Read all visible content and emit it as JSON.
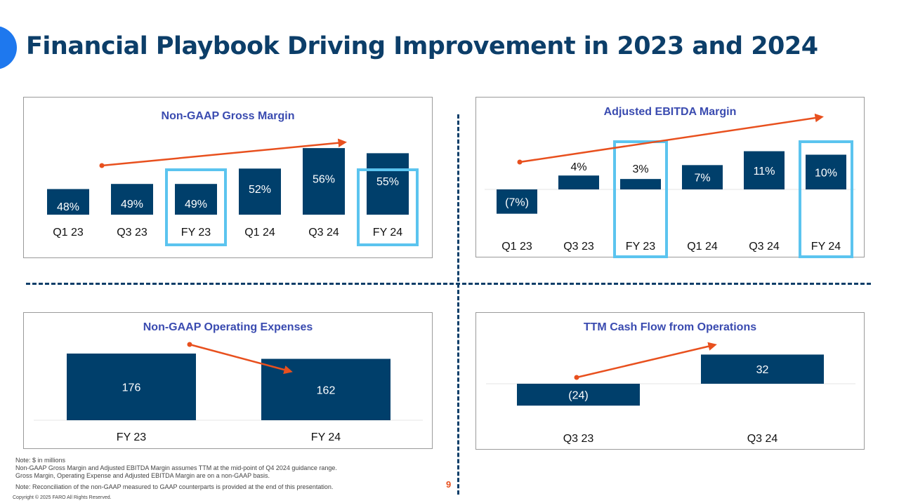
{
  "slide": {
    "title": "Financial Playbook Driving Improvement in 2023 and 2024",
    "page_number": "9",
    "copyright": "Copyright © 2025 FARO All Rights Reserved.",
    "notes": [
      "Note: $ in millions",
      "Non-GAAP Gross Margin and Adjusted EBITDA Margin assumes TTM at the mid-point of Q4 2024 guidance range.",
      "Gross Margin, Operating Expense and Adjusted EBITDA Margin are on a non-GAAP basis.",
      "Note: Reconciliation of the non-GAAP measured to GAAP counterparts is provided at the end of this presentation."
    ]
  },
  "colors": {
    "bar": "#003f6b",
    "highlight": "#5bc4ef",
    "arrow": "#e8501e",
    "title": "#0c3e69",
    "panel_title": "#3a4bb0",
    "accent": "#1e78ee"
  },
  "chart_data": [
    {
      "id": "gross_margin",
      "type": "bar",
      "title": "Non-GAAP Gross Margin",
      "unit": "%",
      "categories": [
        "Q1 23",
        "Q3 23",
        "FY 23",
        "Q1 24",
        "Q3 24",
        "FY 24"
      ],
      "values": [
        48,
        49,
        49,
        52,
        56,
        55
      ],
      "labels": [
        "48%",
        "49%",
        "49%",
        "52%",
        "56%",
        "55%"
      ],
      "highlighted": [
        "FY 23",
        "FY 24"
      ],
      "ylim": [
        43,
        58
      ],
      "trend": "up"
    },
    {
      "id": "ebitda_margin",
      "type": "bar",
      "title": "Adjusted EBITDA Margin",
      "unit": "%",
      "categories": [
        "Q1 23",
        "Q3 23",
        "FY 23",
        "Q1 24",
        "Q3 24",
        "FY 24"
      ],
      "values": [
        -7,
        4,
        3,
        7,
        11,
        10
      ],
      "labels": [
        "(7%)",
        "4%",
        "3%",
        "7%",
        "11%",
        "10%"
      ],
      "highlighted": [
        "FY 23",
        "FY 24"
      ],
      "ylim": [
        -9,
        13
      ],
      "trend": "up"
    },
    {
      "id": "operating_expenses",
      "type": "bar",
      "title": "Non-GAAP Operating Expenses",
      "unit": "$M",
      "categories": [
        "FY 23",
        "FY 24"
      ],
      "values": [
        176,
        162
      ],
      "labels": [
        "176",
        "162"
      ],
      "highlighted": [],
      "ylim": [
        0,
        190
      ],
      "trend": "down"
    },
    {
      "id": "cash_flow",
      "type": "bar",
      "title": "TTM Cash Flow from Operations",
      "unit": "$M",
      "categories": [
        "Q3 23",
        "Q3 24"
      ],
      "values": [
        -24,
        32
      ],
      "labels": [
        "(24)",
        "32"
      ],
      "highlighted": [],
      "ylim": [
        -40,
        50
      ],
      "trend": "up"
    }
  ]
}
